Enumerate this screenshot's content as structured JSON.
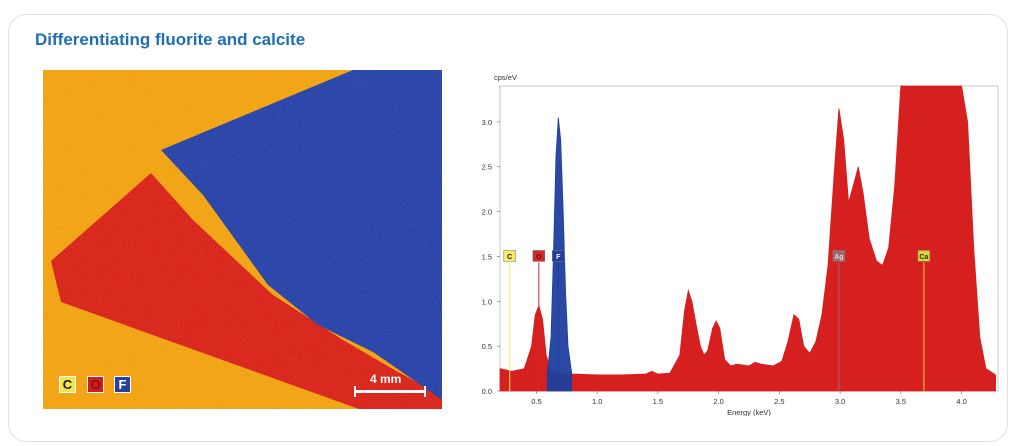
{
  "title": "Differentiating fluorite and calcite",
  "map": {
    "legend": [
      {
        "symbol": "C",
        "color": "#f3e64c",
        "text_color": "#1a1a1a"
      },
      {
        "symbol": "O",
        "color": "#cf1e1e",
        "text_color": "#8a0f0f"
      },
      {
        "symbol": "F",
        "color": "#2b3f9c",
        "text_color": "#ffffff"
      }
    ],
    "scale_bar_label": "4 mm",
    "colors": {
      "matrix": "#f0a011",
      "calcite": "#d8251d",
      "fluorite": "#2a44a8"
    }
  },
  "chart_data": {
    "type": "area",
    "ylabel": "cps/eV",
    "xlabel": "Energy (keV)",
    "xlim": [
      0.2,
      4.3
    ],
    "ylim": [
      0,
      3.4
    ],
    "x_ticks": [
      "0.5",
      "1.0",
      "1.5",
      "2.0",
      "2.5",
      "3.0",
      "3.5",
      "4.0"
    ],
    "y_ticks": [
      "0.0",
      "0.5",
      "1.0",
      "1.5",
      "2.0",
      "2.5",
      "3.0"
    ],
    "series": [
      {
        "color": "#d62020",
        "points": [
          [
            0.2,
            0.25
          ],
          [
            0.3,
            0.22
          ],
          [
            0.4,
            0.25
          ],
          [
            0.46,
            0.5
          ],
          [
            0.49,
            0.85
          ],
          [
            0.52,
            0.95
          ],
          [
            0.55,
            0.8
          ],
          [
            0.58,
            0.4
          ],
          [
            0.62,
            0.22
          ],
          [
            0.7,
            0.2
          ],
          [
            0.8,
            0.19
          ],
          [
            1.0,
            0.18
          ],
          [
            1.2,
            0.18
          ],
          [
            1.4,
            0.19
          ],
          [
            1.45,
            0.22
          ],
          [
            1.5,
            0.19
          ],
          [
            1.6,
            0.2
          ],
          [
            1.68,
            0.4
          ],
          [
            1.72,
            0.9
          ],
          [
            1.75,
            1.12
          ],
          [
            1.78,
            1.0
          ],
          [
            1.82,
            0.7
          ],
          [
            1.85,
            0.5
          ],
          [
            1.88,
            0.4
          ],
          [
            1.91,
            0.45
          ],
          [
            1.95,
            0.7
          ],
          [
            1.98,
            0.78
          ],
          [
            2.01,
            0.7
          ],
          [
            2.05,
            0.35
          ],
          [
            2.1,
            0.28
          ],
          [
            2.15,
            0.3
          ],
          [
            2.25,
            0.28
          ],
          [
            2.3,
            0.32
          ],
          [
            2.35,
            0.3
          ],
          [
            2.45,
            0.28
          ],
          [
            2.52,
            0.33
          ],
          [
            2.57,
            0.55
          ],
          [
            2.62,
            0.85
          ],
          [
            2.66,
            0.8
          ],
          [
            2.7,
            0.5
          ],
          [
            2.75,
            0.42
          ],
          [
            2.8,
            0.55
          ],
          [
            2.85,
            0.85
          ],
          [
            2.9,
            1.4
          ],
          [
            2.95,
            2.4
          ],
          [
            2.99,
            3.15
          ],
          [
            3.03,
            2.8
          ],
          [
            3.07,
            2.1
          ],
          [
            3.11,
            2.3
          ],
          [
            3.15,
            2.5
          ],
          [
            3.19,
            2.2
          ],
          [
            3.24,
            1.7
          ],
          [
            3.3,
            1.45
          ],
          [
            3.35,
            1.4
          ],
          [
            3.4,
            1.6
          ],
          [
            3.45,
            2.3
          ],
          [
            3.5,
            3.4
          ],
          [
            4.0,
            3.4
          ],
          [
            4.05,
            3.0
          ],
          [
            4.1,
            1.6
          ],
          [
            4.15,
            0.6
          ],
          [
            4.2,
            0.25
          ],
          [
            4.28,
            0.18
          ]
        ]
      },
      {
        "color": "#1e3f9f",
        "points": [
          [
            0.59,
            0.2
          ],
          [
            0.62,
            0.6
          ],
          [
            0.64,
            1.5
          ],
          [
            0.66,
            2.6
          ],
          [
            0.68,
            3.05
          ],
          [
            0.7,
            2.8
          ],
          [
            0.72,
            2.0
          ],
          [
            0.74,
            1.1
          ],
          [
            0.76,
            0.5
          ],
          [
            0.79,
            0.2
          ]
        ]
      }
    ],
    "labels": [
      {
        "text": "C",
        "x": 0.28,
        "y": 1.5,
        "fill": "#f5ea6a",
        "text_color": "#1a1a1a"
      },
      {
        "text": "O",
        "x": 0.52,
        "y": 1.5,
        "fill": "#cf2a2a",
        "text_color": "#6a0808"
      },
      {
        "text": "F",
        "x": 0.68,
        "y": 1.5,
        "fill": "#1e3f9f",
        "text_color": "#ffffff"
      },
      {
        "text": "Ag",
        "x": 2.99,
        "y": 1.5,
        "fill": "#9a6a70",
        "text_color": "#f0d0d0"
      },
      {
        "text": "Ca",
        "x": 3.69,
        "y": 1.5,
        "fill": "#d8d33a",
        "text_color": "#3a3300"
      }
    ]
  }
}
